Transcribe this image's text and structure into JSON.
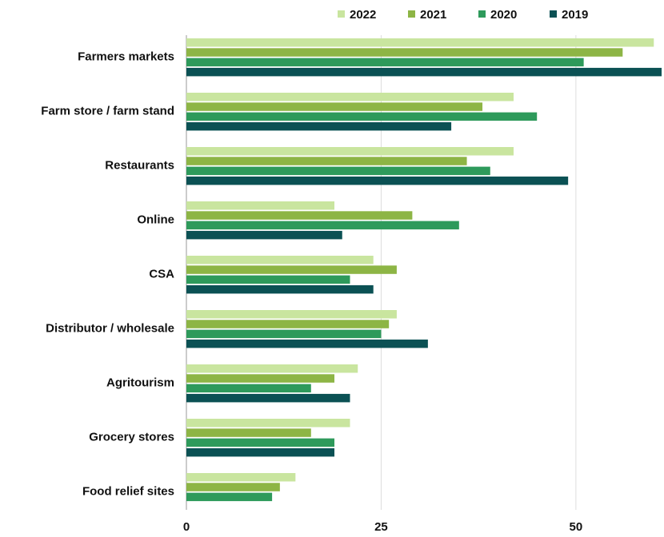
{
  "chart_data": {
    "type": "bar",
    "orientation": "horizontal",
    "title": "",
    "xlabel": "",
    "ylabel": "",
    "xlim": [
      0,
      61
    ],
    "xticks": [
      "0",
      "25",
      "50"
    ],
    "grid": true,
    "legend_position": "top",
    "categories": [
      "Farmers markets",
      "Farm store / farm stand",
      "Restaurants",
      "Online",
      "CSA",
      "Distributor / wholesale",
      "Agritourism",
      "Grocery stores",
      "Food relief sites"
    ],
    "series": [
      {
        "name": "2022",
        "color": "#c9e59f",
        "values": [
          60,
          42,
          42,
          19,
          24,
          27,
          22,
          21,
          14
        ]
      },
      {
        "name": "2021",
        "color": "#8db545",
        "values": [
          56,
          38,
          36,
          29,
          27,
          26,
          19,
          16,
          12
        ]
      },
      {
        "name": "2020",
        "color": "#2e9a5b",
        "values": [
          51,
          45,
          39,
          35,
          21,
          25,
          16,
          19,
          11
        ]
      },
      {
        "name": "2019",
        "color": "#0b5154",
        "values": [
          61,
          34,
          49,
          20,
          24,
          31,
          21,
          19,
          null
        ]
      }
    ]
  }
}
